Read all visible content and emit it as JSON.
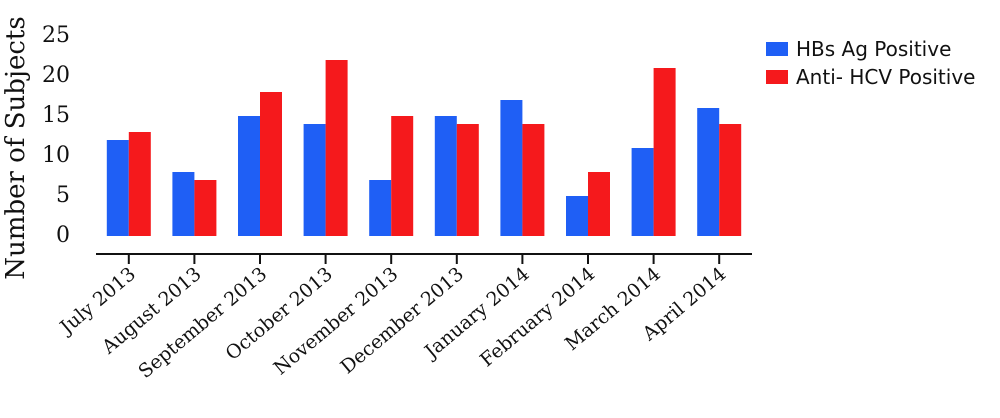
{
  "chart_data": {
    "type": "bar",
    "title": "",
    "xlabel": "",
    "ylabel": "Number of Subjects",
    "ylim": [
      0,
      25
    ],
    "yticks": [
      0,
      5,
      10,
      15,
      20,
      25
    ],
    "grid": false,
    "legend_position": "top-right",
    "categories": [
      "July 2013",
      "August 2013",
      "September 2013",
      "October 2013",
      "November 2013",
      "December 2013",
      "January 2014",
      "February 2014",
      "March 2014",
      "April 2014"
    ],
    "series": [
      {
        "name": "HBs Ag Positive",
        "color": "#1f5ff5",
        "values": [
          12,
          8,
          15,
          14,
          7,
          15,
          17,
          5,
          11,
          16
        ]
      },
      {
        "name": "Anti- HCV Positive",
        "color": "#f5191c",
        "values": [
          13,
          7,
          18,
          22,
          15,
          14,
          14,
          8,
          21,
          14
        ]
      }
    ]
  }
}
